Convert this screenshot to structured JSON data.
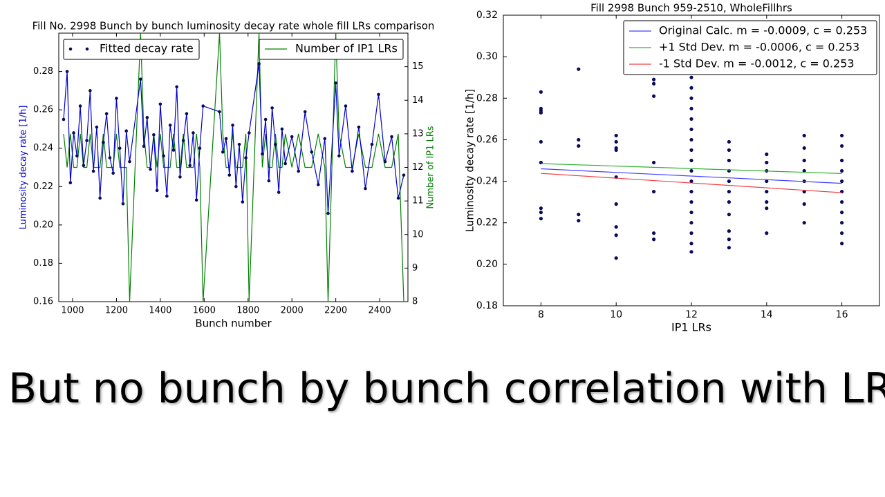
{
  "caption": "But no bunch by bunch correlation with LRs",
  "chart_data": [
    {
      "type": "line",
      "title": "Fill No. 2998 Bunch by bunch luminosity decay rate whole fill LRs comparison",
      "x_label": "Bunch number",
      "y_label": "Luminosity decay rate [1/h]",
      "y2_label": "Number of IP1 LRs",
      "xlim": [
        937,
        2529
      ],
      "xticks": [
        1000,
        1200,
        1400,
        1600,
        1800,
        2000,
        2200,
        2400
      ],
      "ylim": [
        0.16,
        0.3
      ],
      "yticks": [
        0.16,
        0.18,
        {
          "value": 0.2,
          "label": "0.20"
        },
        0.22,
        0.24,
        0.26,
        0.28
      ],
      "y2lim": [
        8,
        16
      ],
      "y2ticks": [
        8,
        9,
        10,
        11,
        12,
        13,
        14,
        15
      ],
      "x": [
        959,
        975,
        990,
        1005,
        1020,
        1035,
        1050,
        1065,
        1080,
        1095,
        1110,
        1125,
        1140,
        1155,
        1170,
        1185,
        1200,
        1215,
        1230,
        1245,
        1260,
        1310,
        1325,
        1340,
        1355,
        1370,
        1385,
        1400,
        1415,
        1430,
        1445,
        1460,
        1475,
        1490,
        1505,
        1520,
        1535,
        1550,
        1565,
        1580,
        1595,
        1670,
        1685,
        1700,
        1715,
        1730,
        1745,
        1760,
        1775,
        1790,
        1805,
        1850,
        1865,
        1880,
        1895,
        1910,
        1925,
        1940,
        1955,
        1970,
        2000,
        2030,
        2060,
        2090,
        2120,
        2150,
        2165,
        2200,
        2215,
        2245,
        2275,
        2305,
        2335,
        2365,
        2395,
        2425,
        2455,
        2485,
        2510
      ],
      "series": [
        {
          "name": "Fitted decay rate",
          "color": "#0000cc",
          "markers": true,
          "values": [
            0.255,
            0.28,
            0.222,
            0.248,
            0.236,
            0.262,
            0.231,
            0.244,
            0.27,
            0.228,
            0.251,
            0.214,
            0.243,
            0.258,
            0.235,
            0.227,
            0.266,
            0.24,
            0.211,
            0.249,
            0.233,
            0.276,
            0.241,
            0.256,
            0.229,
            0.247,
            0.218,
            0.263,
            0.236,
            0.215,
            0.252,
            0.239,
            0.272,
            0.225,
            0.244,
            0.258,
            0.231,
            0.248,
            0.213,
            0.24,
            0.262,
            0.259,
            0.238,
            0.245,
            0.226,
            0.252,
            0.22,
            0.242,
            0.212,
            0.235,
            0.248,
            0.284,
            0.237,
            0.255,
            0.223,
            0.261,
            0.242,
            0.217,
            0.25,
            0.232,
            0.246,
            0.228,
            0.259,
            0.238,
            0.221,
            0.245,
            0.206,
            0.274,
            0.236,
            0.262,
            0.228,
            0.251,
            0.219,
            0.242,
            0.268,
            0.233,
            0.246,
            0.214,
            0.226
          ]
        },
        {
          "name": "Number of IP1 LRs",
          "color": "#008000",
          "axis": "y2",
          "markers": false,
          "values": [
            13,
            12,
            13,
            12,
            12,
            13,
            12,
            12,
            13,
            12,
            12,
            12,
            13,
            12,
            12,
            12,
            13,
            12,
            12,
            12,
            8,
            16,
            13,
            12,
            12,
            13,
            12,
            13,
            12,
            12,
            12,
            13,
            12,
            12,
            13,
            12,
            12,
            12,
            13,
            12,
            8,
            16,
            13,
            12,
            12,
            13,
            12,
            12,
            12,
            13,
            8,
            16,
            12,
            13,
            12,
            12,
            13,
            12,
            12,
            13,
            12,
            13,
            12,
            12,
            13,
            12,
            8,
            16,
            13,
            12,
            12,
            13,
            12,
            12,
            13,
            12,
            12,
            13,
            8
          ]
        }
      ]
    },
    {
      "type": "scatter",
      "title": "Fill 2998 Bunch 959-2510, WholeFillhrs",
      "x_label": "IP1 LRs",
      "y_label": "Luminosity decay rate [1/h]",
      "xlim": [
        7,
        17
      ],
      "xticks": [
        8,
        10,
        12,
        14,
        16
      ],
      "ylim": [
        0.18,
        0.32
      ],
      "yticks": [
        0.18,
        {
          "value": 0.2,
          "label": "0.20"
        },
        0.22,
        0.24,
        0.26,
        0.28,
        {
          "value": 0.3,
          "label": "0.30"
        },
        0.32
      ],
      "color": "#0a0a5a",
      "x": [
        8,
        8,
        8,
        8,
        8,
        8,
        8,
        8,
        8,
        9,
        9,
        9,
        9,
        9,
        10,
        10,
        10,
        10,
        10,
        10,
        10,
        10,
        10,
        11,
        11,
        11,
        11,
        11,
        11,
        11,
        12,
        12,
        12,
        12,
        12,
        12,
        12,
        12,
        12,
        12,
        12,
        12,
        12,
        12,
        12,
        12,
        12,
        12,
        12,
        13,
        13,
        13,
        13,
        13,
        13,
        13,
        13,
        13,
        13,
        13,
        14,
        14,
        14,
        14,
        14,
        14,
        14,
        14,
        15,
        15,
        15,
        15,
        15,
        15,
        15,
        15,
        16,
        16,
        16,
        16,
        16,
        16,
        16,
        16,
        16,
        16,
        16
      ],
      "values": [
        0.283,
        0.275,
        0.274,
        0.273,
        0.259,
        0.249,
        0.227,
        0.225,
        0.222,
        0.294,
        0.26,
        0.257,
        0.224,
        0.221,
        0.262,
        0.259,
        0.256,
        0.255,
        0.242,
        0.229,
        0.218,
        0.214,
        0.203,
        0.289,
        0.287,
        0.281,
        0.249,
        0.235,
        0.215,
        0.212,
        0.294,
        0.29,
        0.285,
        0.28,
        0.275,
        0.27,
        0.265,
        0.26,
        0.255,
        0.25,
        0.245,
        0.24,
        0.235,
        0.23,
        0.225,
        0.22,
        0.215,
        0.21,
        0.206,
        0.259,
        0.255,
        0.25,
        0.245,
        0.24,
        0.235,
        0.23,
        0.224,
        0.216,
        0.212,
        0.208,
        0.253,
        0.249,
        0.245,
        0.24,
        0.235,
        0.23,
        0.227,
        0.215,
        0.262,
        0.256,
        0.25,
        0.245,
        0.24,
        0.235,
        0.229,
        0.22,
        0.262,
        0.257,
        0.25,
        0.245,
        0.24,
        0.235,
        0.23,
        0.225,
        0.22,
        0.215,
        0.21
      ],
      "lines": [
        {
          "name": "Original Calc. m = -0.0009, c = 0.253",
          "color": "#4040ff",
          "x": [
            8,
            16
          ],
          "values": [
            0.246,
            0.239
          ]
        },
        {
          "name": "+1 Std Dev. m = -0.0006, c = 0.253",
          "color": "#30b030",
          "x": [
            8,
            16
          ],
          "values": [
            0.2485,
            0.2437
          ]
        },
        {
          "name": "-1 Std Dev. m = -0.0012, c = 0.253",
          "color": "#f04040",
          "x": [
            8,
            16
          ],
          "values": [
            0.2438,
            0.2345
          ]
        }
      ]
    }
  ]
}
